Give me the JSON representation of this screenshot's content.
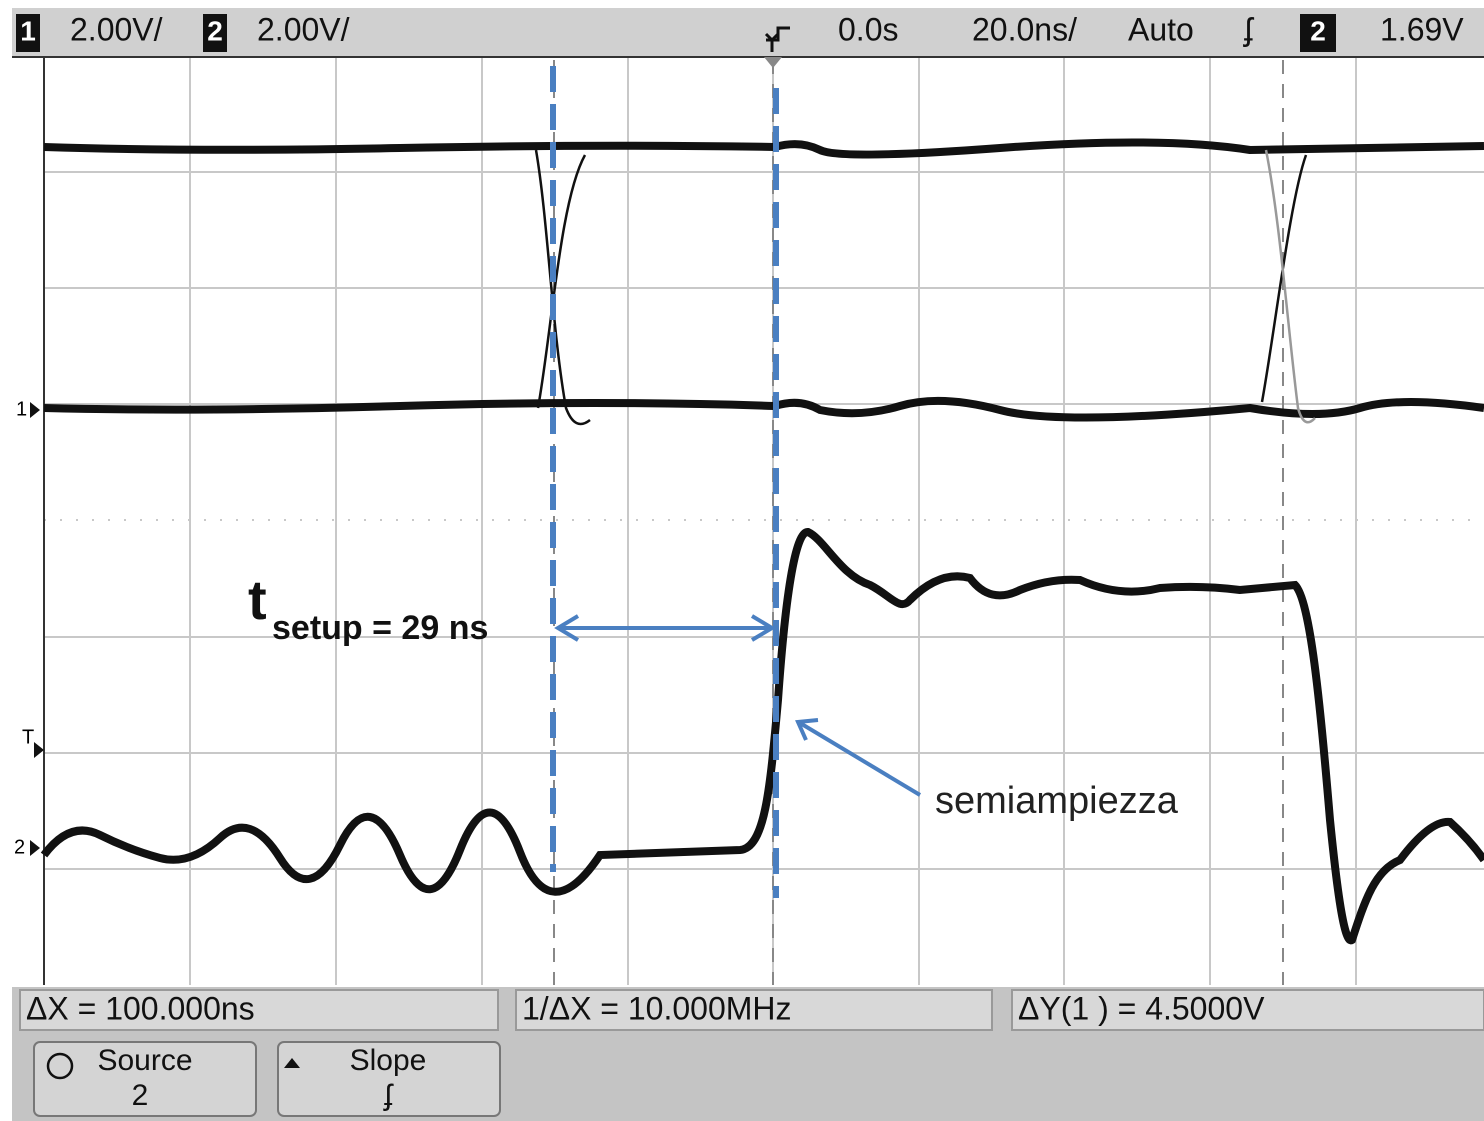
{
  "header": {
    "ch1_label": "1",
    "ch1_scale": "2.00V/",
    "ch2_label": "2",
    "ch2_scale": "2.00V/",
    "delay": "0.0s",
    "timebase": "20.0ns/",
    "mode": "Auto",
    "slope": "ʄ",
    "trigger_source": "2",
    "trigger_level": "1.69V"
  },
  "markers": {
    "ch1": "1",
    "trigger": "T",
    "ch2": "2"
  },
  "annotations": {
    "setup_label": "t",
    "setup_subscript": "setup = 29 ns",
    "note": "semiampiezza"
  },
  "measurements": [
    "ΔX = 100.000ns",
    "1/ΔX = 10.000MHz",
    "ΔY(1 ) = 4.5000V"
  ],
  "softkeys": [
    {
      "label": "Source",
      "value": "2"
    },
    {
      "label": "Slope",
      "value": "ʄ"
    }
  ]
}
